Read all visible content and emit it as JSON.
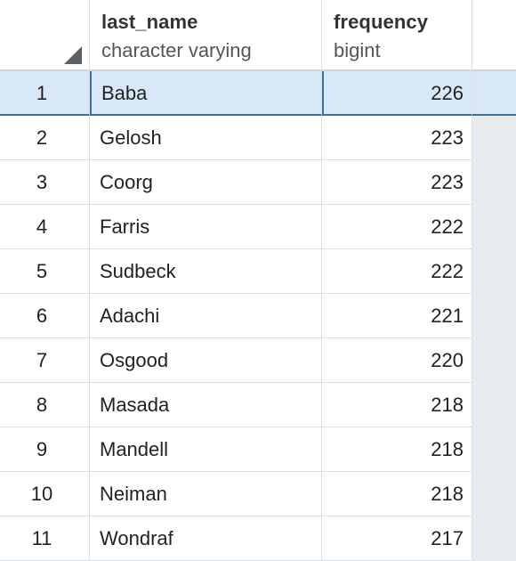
{
  "columns": [
    {
      "name": "last_name",
      "type": "character varying"
    },
    {
      "name": "frequency",
      "type": "bigint"
    }
  ],
  "rows": [
    {
      "num": "1",
      "last_name": "Baba",
      "frequency": "226"
    },
    {
      "num": "2",
      "last_name": "Gelosh",
      "frequency": "223"
    },
    {
      "num": "3",
      "last_name": "Coorg",
      "frequency": "223"
    },
    {
      "num": "4",
      "last_name": "Farris",
      "frequency": "222"
    },
    {
      "num": "5",
      "last_name": "Sudbeck",
      "frequency": "222"
    },
    {
      "num": "6",
      "last_name": "Adachi",
      "frequency": "221"
    },
    {
      "num": "7",
      "last_name": "Osgood",
      "frequency": "220"
    },
    {
      "num": "8",
      "last_name": "Masada",
      "frequency": "218"
    },
    {
      "num": "9",
      "last_name": "Mandell",
      "frequency": "218"
    },
    {
      "num": "10",
      "last_name": "Neiman",
      "frequency": "218"
    },
    {
      "num": "11",
      "last_name": "Wondraf",
      "frequency": "217"
    }
  ],
  "selected_row": "1",
  "colors": {
    "selected_row_bg": "#d9e8f6",
    "selected_border": "#3f6f97",
    "grid_line": "#dcdfe3",
    "empty_area": "#e8ebee"
  }
}
